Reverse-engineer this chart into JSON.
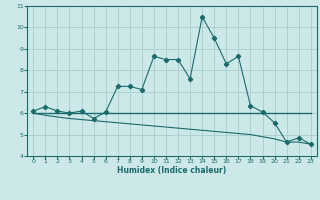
{
  "xlabel": "Humidex (Indice chaleur)",
  "bg_color": "#cde8e8",
  "grid_color": "#aed0d0",
  "line_color": "#1a6b6b",
  "xlim": [
    -0.5,
    23.5
  ],
  "ylim": [
    4,
    11
  ],
  "xticks": [
    0,
    1,
    2,
    3,
    4,
    5,
    6,
    7,
    8,
    9,
    10,
    11,
    12,
    13,
    14,
    15,
    16,
    17,
    18,
    19,
    20,
    21,
    22,
    23
  ],
  "yticks": [
    4,
    5,
    6,
    7,
    8,
    9,
    10,
    11
  ],
  "curve1_x": [
    0,
    1,
    2,
    3,
    4,
    5,
    6,
    7,
    8,
    9,
    10,
    11,
    12,
    13,
    14,
    15,
    16,
    17,
    18,
    19,
    20,
    21,
    22,
    23
  ],
  "curve1_y": [
    6.1,
    6.3,
    6.1,
    6.0,
    6.1,
    5.75,
    6.05,
    7.25,
    7.25,
    7.1,
    8.65,
    8.5,
    8.5,
    7.6,
    10.5,
    9.5,
    8.3,
    8.65,
    6.35,
    6.05,
    5.55,
    4.65,
    4.85,
    4.55
  ],
  "curve2_x": [
    0,
    23
  ],
  "curve2_y": [
    6.0,
    6.0
  ],
  "curve3_x": [
    0,
    1,
    2,
    3,
    4,
    5,
    6,
    7,
    8,
    9,
    10,
    11,
    12,
    13,
    14,
    15,
    16,
    17,
    18,
    19,
    20,
    21,
    22,
    23
  ],
  "curve3_y": [
    6.0,
    5.9,
    5.82,
    5.75,
    5.7,
    5.65,
    5.6,
    5.55,
    5.5,
    5.45,
    5.4,
    5.35,
    5.3,
    5.25,
    5.2,
    5.15,
    5.1,
    5.05,
    5.0,
    4.9,
    4.8,
    4.65,
    4.65,
    4.55
  ]
}
